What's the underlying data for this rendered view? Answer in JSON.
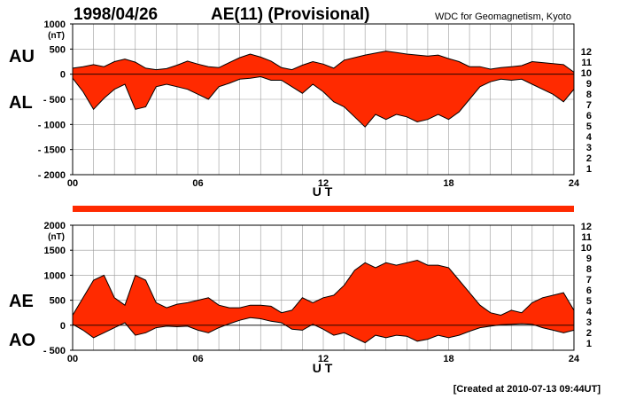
{
  "header": {
    "date": "1998/04/26",
    "title": "AE(11) (Provisional)",
    "source": "WDC for Geomagnetism, Kyoto"
  },
  "footer": {
    "created": "[Created at 2010-07-13 09:44UT]"
  },
  "colors": {
    "fill": "#ff2a00",
    "line": "#000000",
    "grid": "#999999",
    "bar": "#ff2a00"
  },
  "station_legend": [
    {
      "label": "12",
      "color": "#ff1a9c"
    },
    {
      "label": "11",
      "color": "#ff1a1a"
    },
    {
      "label": "10",
      "color": "#ff9900"
    },
    {
      "label": "9",
      "color": "#e6d800"
    },
    {
      "label": "8",
      "color": "#66dd00"
    },
    {
      "label": "7",
      "color": "#00ccee"
    },
    {
      "label": "6",
      "color": "#0066ff"
    },
    {
      "label": "5",
      "color": "#2200aa"
    },
    {
      "label": "4",
      "color": "#cc00cc"
    },
    {
      "label": "3",
      "color": "#000000"
    },
    {
      "label": "2",
      "color": "#777777"
    },
    {
      "label": "1",
      "color": "#bbbbbb"
    }
  ],
  "chart_data": [
    {
      "type": "area",
      "unit": "(nT)",
      "xlabel": "U T",
      "ylim": [
        -2000,
        1000
      ],
      "yticks": [
        "1000",
        "500",
        "0",
        "- 500",
        "- 1000",
        "- 1500",
        "- 2000"
      ],
      "ytick_values": [
        1000,
        500,
        0,
        -500,
        -1000,
        -1500,
        -2000
      ],
      "xlim": [
        0,
        24
      ],
      "xticks": [
        "00",
        "06",
        "12",
        "18",
        "24"
      ],
      "xtick_values": [
        0,
        6,
        12,
        18,
        24
      ],
      "grid": true,
      "series_labels": {
        "upper": "AU",
        "lower": "AL"
      },
      "x": [
        0,
        0.5,
        1,
        1.5,
        2,
        2.5,
        3,
        3.5,
        4,
        4.5,
        5,
        5.5,
        6,
        6.5,
        7,
        7.5,
        8,
        8.5,
        9,
        9.5,
        10,
        10.5,
        11,
        11.5,
        12,
        12.5,
        13,
        13.5,
        14,
        14.5,
        15,
        15.5,
        16,
        16.5,
        17,
        17.5,
        18,
        18.5,
        19,
        19.5,
        20,
        20.5,
        21,
        21.5,
        22,
        22.5,
        23,
        23.5,
        24
      ],
      "upper": [
        120,
        150,
        190,
        150,
        250,
        300,
        240,
        120,
        90,
        110,
        180,
        260,
        200,
        150,
        130,
        230,
        330,
        400,
        340,
        260,
        130,
        90,
        180,
        250,
        200,
        120,
        280,
        330,
        380,
        420,
        460,
        430,
        400,
        380,
        360,
        380,
        310,
        250,
        150,
        150,
        100,
        130,
        150,
        170,
        250,
        230,
        210,
        190,
        40
      ],
      "lower": [
        -80,
        -350,
        -700,
        -480,
        -300,
        -200,
        -700,
        -650,
        -250,
        -200,
        -250,
        -300,
        -400,
        -500,
        -250,
        -180,
        -100,
        -80,
        -50,
        -120,
        -120,
        -250,
        -380,
        -200,
        -350,
        -550,
        -650,
        -850,
        -1050,
        -800,
        -900,
        -800,
        -850,
        -950,
        -900,
        -800,
        -900,
        -750,
        -500,
        -250,
        -150,
        -100,
        -120,
        -100,
        -200,
        -300,
        -400,
        -550,
        -300
      ]
    },
    {
      "type": "area",
      "unit": "(nT)",
      "xlabel": "U T",
      "ylim": [
        -500,
        2000
      ],
      "yticks": [
        "2000",
        "1500",
        "1000",
        "500",
        "0",
        "- 500"
      ],
      "ytick_values": [
        2000,
        1500,
        1000,
        500,
        0,
        -500
      ],
      "xlim": [
        0,
        24
      ],
      "xticks": [
        "00",
        "06",
        "12",
        "18",
        "24"
      ],
      "xtick_values": [
        0,
        6,
        12,
        18,
        24
      ],
      "grid": true,
      "series_labels": {
        "upper": "AE",
        "lower": "AO"
      },
      "x": [
        0,
        0.5,
        1,
        1.5,
        2,
        2.5,
        3,
        3.5,
        4,
        4.5,
        5,
        5.5,
        6,
        6.5,
        7,
        7.5,
        8,
        8.5,
        9,
        9.5,
        10,
        10.5,
        11,
        11.5,
        12,
        12.5,
        13,
        13.5,
        14,
        14.5,
        15,
        15.5,
        16,
        16.5,
        17,
        17.5,
        18,
        18.5,
        19,
        19.5,
        20,
        20.5,
        21,
        21.5,
        22,
        22.5,
        23,
        23.5,
        24
      ],
      "upper": [
        200,
        550,
        900,
        1000,
        550,
        400,
        1000,
        900,
        450,
        350,
        420,
        450,
        500,
        550,
        400,
        350,
        350,
        400,
        400,
        380,
        250,
        300,
        550,
        450,
        550,
        600,
        800,
        1100,
        1250,
        1150,
        1250,
        1200,
        1250,
        1300,
        1200,
        1200,
        1150,
        900,
        650,
        400,
        250,
        200,
        300,
        250,
        450,
        550,
        600,
        650,
        300
      ],
      "lower": [
        20,
        -100,
        -250,
        -150,
        -50,
        50,
        -200,
        -150,
        -50,
        -20,
        -30,
        -20,
        -100,
        -150,
        -50,
        30,
        100,
        150,
        130,
        80,
        50,
        -80,
        -100,
        20,
        -80,
        -200,
        -150,
        -250,
        -350,
        -200,
        -250,
        -200,
        -220,
        -320,
        -280,
        -200,
        -250,
        -200,
        -120,
        -50,
        -20,
        10,
        20,
        30,
        20,
        -50,
        -100,
        -150,
        -100
      ]
    }
  ]
}
